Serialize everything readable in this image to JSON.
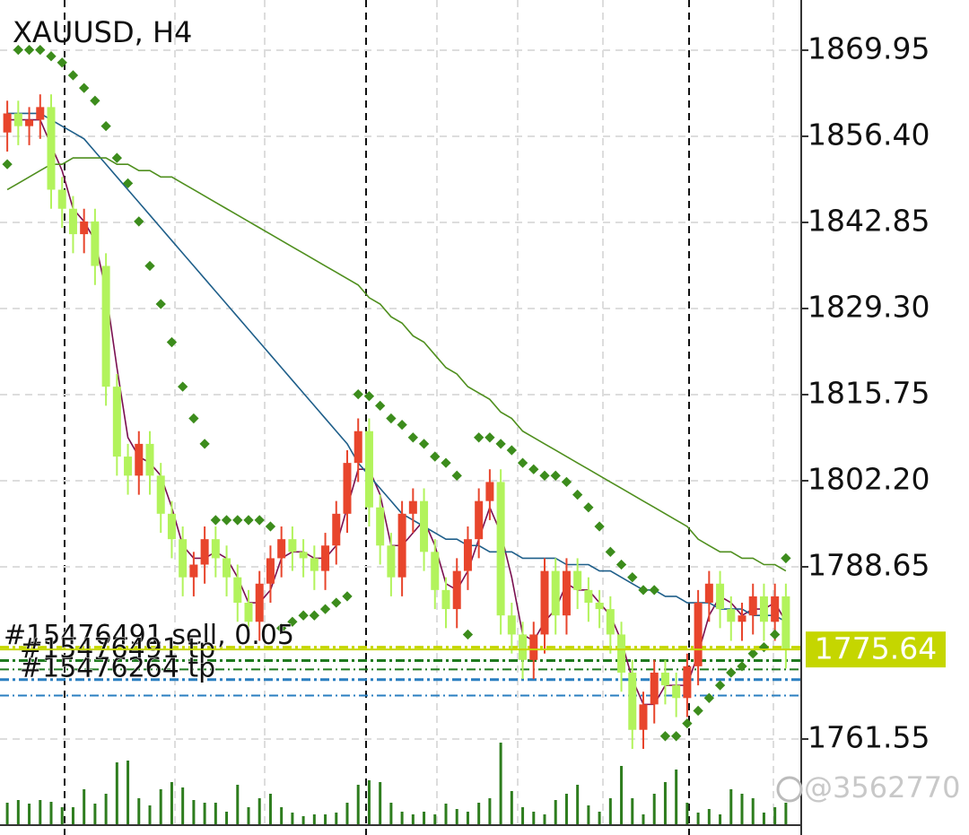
{
  "chart_data": {
    "type": "candlestick",
    "title": "XAUUSD, H4",
    "ylim": [
      1748.0,
      1877.85
    ],
    "yticks": [
      1869.95,
      {
        "value": 1856.4,
        "label": "1856.40"
      },
      1842.85,
      {
        "value": 1829.3,
        "label": "1829.30"
      },
      1815.75,
      {
        "value": 1802.2,
        "label": "1802.20"
      },
      1788.65,
      1761.55
    ],
    "grid": true,
    "bull_color": "#e8452c",
    "bear_color": "#b2f35c",
    "open": [
      1857,
      1860,
      1858,
      1859,
      1861,
      1848,
      1845,
      1841,
      1843,
      1836,
      1817,
      1806,
      1803,
      1808,
      1803,
      1797,
      1793,
      1787,
      1789,
      1793,
      1790,
      1787,
      1783,
      1780,
      1786,
      1790,
      1793,
      1791,
      1790,
      1788,
      1792,
      1797,
      1805,
      1810,
      1798,
      1792,
      1787,
      1797,
      1799,
      1791,
      1785,
      1782,
      1788,
      1793,
      1799,
      1802,
      1781,
      1778,
      1774,
      1778,
      1788,
      1781,
      1788,
      1785,
      1783,
      1782,
      1778,
      1772,
      1763,
      1767,
      1772,
      1770,
      1768,
      1773,
      1783,
      1786,
      1782,
      1780,
      1781,
      1784,
      1780,
      1784
    ],
    "high": [
      1862,
      1862,
      1861,
      1863,
      1863,
      1850,
      1847,
      1845,
      1845,
      1838,
      1819,
      1808,
      1810,
      1810,
      1805,
      1799,
      1795,
      1791,
      1795,
      1795,
      1792,
      1789,
      1785,
      1788,
      1792,
      1795,
      1795,
      1793,
      1792,
      1794,
      1799,
      1807,
      1812,
      1812,
      1800,
      1794,
      1799,
      1801,
      1801,
      1793,
      1787,
      1790,
      1795,
      1801,
      1804,
      1804,
      1783,
      1780,
      1780,
      1790,
      1790,
      1790,
      1790,
      1787,
      1785,
      1784,
      1780,
      1774,
      1769,
      1774,
      1774,
      1772,
      1775,
      1785,
      1788,
      1788,
      1784,
      1783,
      1786,
      1786,
      1786,
      1786
    ],
    "low": [
      1854,
      1855,
      1855,
      1856,
      1845,
      1842,
      1838,
      1838,
      1833,
      1814,
      1803,
      1800,
      1800,
      1800,
      1794,
      1790,
      1784,
      1784,
      1786,
      1787,
      1784,
      1780,
      1777,
      1777,
      1783,
      1787,
      1788,
      1787,
      1785,
      1785,
      1789,
      1794,
      1802,
      1795,
      1789,
      1784,
      1784,
      1794,
      1788,
      1782,
      1779,
      1779,
      1785,
      1790,
      1796,
      1778,
      1775,
      1771,
      1771,
      1775,
      1778,
      1778,
      1782,
      1780,
      1779,
      1775,
      1769,
      1760,
      1760,
      1764,
      1767,
      1765,
      1765,
      1770,
      1780,
      1779,
      1777,
      1777,
      1778,
      1777,
      1777,
      1772.64
    ],
    "close": [
      1860,
      1858,
      1859,
      1861,
      1848,
      1845,
      1841,
      1843,
      1836,
      1817,
      1806,
      1803,
      1808,
      1803,
      1797,
      1793,
      1787,
      1789,
      1793,
      1790,
      1787,
      1783,
      1780,
      1786,
      1790,
      1793,
      1791,
      1790,
      1788,
      1792,
      1797,
      1805,
      1810,
      1798,
      1792,
      1787,
      1797,
      1799,
      1791,
      1785,
      1782,
      1788,
      1793,
      1799,
      1802,
      1781,
      1778,
      1774,
      1778,
      1788,
      1781,
      1788,
      1785,
      1783,
      1782,
      1778,
      1772,
      1763,
      1767,
      1772,
      1770,
      1768,
      1773,
      1783,
      1786,
      1782,
      1780,
      1781,
      1784,
      1780,
      1784,
      1775.64
    ],
    "sar_color": "#3c8c1c",
    "sar": [
      1852,
      1870,
      1870,
      1870,
      1869,
      1868,
      1866,
      1864,
      1862,
      1858,
      1853,
      1849,
      1843,
      1836,
      1830,
      1824,
      1817,
      1812,
      1808,
      1796,
      1796,
      1796,
      1796,
      1796,
      1795,
      1779,
      1780,
      1781,
      1781,
      1782,
      1783,
      1784,
      1815.8,
      1815.5,
      1814,
      1812,
      1811,
      1809,
      1808,
      1806,
      1805,
      1803,
      1778,
      1809,
      1809,
      1808,
      1807,
      1805,
      1804,
      1803,
      1803,
      1802,
      1800,
      1798,
      1795,
      1791,
      1789,
      1787,
      1785,
      1785,
      1762,
      1762,
      1764,
      1766,
      1768,
      1770,
      1772,
      1773,
      1775,
      1776,
      1778,
      1790
    ],
    "ma": [
      {
        "color": "#7a1050",
        "values": [
          1859,
          1859,
          1859,
          1859,
          1855,
          1851,
          1845,
          1843,
          1840,
          1832,
          1820,
          1809,
          1806,
          1805,
          1803,
          1798,
          1792,
          1790,
          1790,
          1791,
          1790,
          1787,
          1783,
          1783,
          1785,
          1790,
          1791,
          1791,
          1790,
          1790,
          1792,
          1798,
          1804,
          1804,
          1800,
          1792,
          1792,
          1794,
          1796,
          1792,
          1786,
          1785,
          1788,
          1793,
          1798,
          1794,
          1787,
          1778,
          1777,
          1780,
          1782,
          1786,
          1785,
          1785,
          1783,
          1781,
          1777,
          1771,
          1767,
          1767,
          1770,
          1770,
          1770,
          1775,
          1781,
          1784,
          1783,
          1781,
          1782,
          1782,
          1783,
          1780
        ]
      },
      {
        "color": "#1f5f8a",
        "values": [
          1860,
          1860,
          1860,
          1860,
          1859,
          1858,
          1857,
          1856,
          1854,
          1852,
          1850,
          1848,
          1846,
          1844,
          1842,
          1840,
          1838,
          1836,
          1834,
          1832,
          1830,
          1828,
          1826,
          1824,
          1822,
          1820,
          1818,
          1816,
          1814,
          1812,
          1810,
          1808,
          1805,
          1803,
          1801,
          1799,
          1797,
          1796,
          1795,
          1794,
          1793,
          1793,
          1792,
          1792,
          1791,
          1791,
          1791,
          1790,
          1790,
          1790,
          1790,
          1789,
          1789,
          1789,
          1788,
          1788,
          1787,
          1786,
          1785,
          1785,
          1784,
          1784,
          1783,
          1783,
          1783,
          1782,
          1782,
          1782,
          1781,
          1781,
          1781,
          1780
        ]
      },
      {
        "color": "#4f8f1e",
        "values": [
          1848,
          1849,
          1850,
          1851,
          1852,
          1852,
          1853,
          1853,
          1853,
          1853,
          1852,
          1852,
          1851,
          1851,
          1850,
          1850,
          1849,
          1848,
          1847,
          1846,
          1845,
          1844,
          1843,
          1842,
          1841,
          1840,
          1839,
          1838,
          1837,
          1836,
          1835,
          1834,
          1833,
          1831,
          1830,
          1828,
          1827,
          1825,
          1824,
          1822,
          1820,
          1819,
          1817,
          1816,
          1815,
          1813,
          1812,
          1810,
          1809,
          1808,
          1807,
          1806,
          1805,
          1804,
          1803,
          1802,
          1801,
          1800,
          1799,
          1798,
          1797,
          1796,
          1795,
          1793,
          1792,
          1791,
          1791,
          1790,
          1790,
          1789,
          1789,
          1788
        ]
      }
    ],
    "volume_color": "#2e7d1e",
    "vlim": [
      0,
      100
    ],
    "volume": [
      25,
      28,
      24,
      28,
      26,
      20,
      20,
      40,
      24,
      35,
      70,
      72,
      30,
      22,
      40,
      48,
      42,
      28,
      25,
      25,
      15,
      45,
      20,
      30,
      35,
      20,
      14,
      10,
      12,
      12,
      14,
      25,
      45,
      50,
      48,
      25,
      15,
      12,
      15,
      12,
      24,
      18,
      15,
      25,
      30,
      92,
      38,
      20,
      15,
      12,
      28,
      35,
      45,
      22,
      15,
      30,
      66,
      30,
      12,
      35,
      48,
      62,
      25,
      14,
      18,
      12,
      40,
      35,
      30,
      14,
      20,
      25
    ],
    "price_line": {
      "value": 1775.64,
      "color": "#c5d600"
    },
    "orders": [
      {
        "label": "#15476264 tp",
        "price": 1770.9,
        "color": "#2a7fc0"
      },
      {
        "label": "#15476491 sell, 0.05",
        "price": 1776.0,
        "color": "#c5d600"
      },
      {
        "label": "#15476491 tp",
        "price": 1773.9,
        "color": "#1f7a1f"
      }
    ],
    "levels": [
      {
        "price": 1772.5,
        "color": "#1f7a1f"
      },
      {
        "price": 1768.4,
        "color": "#2a7fc0"
      }
    ],
    "watermark": "@3562770"
  }
}
